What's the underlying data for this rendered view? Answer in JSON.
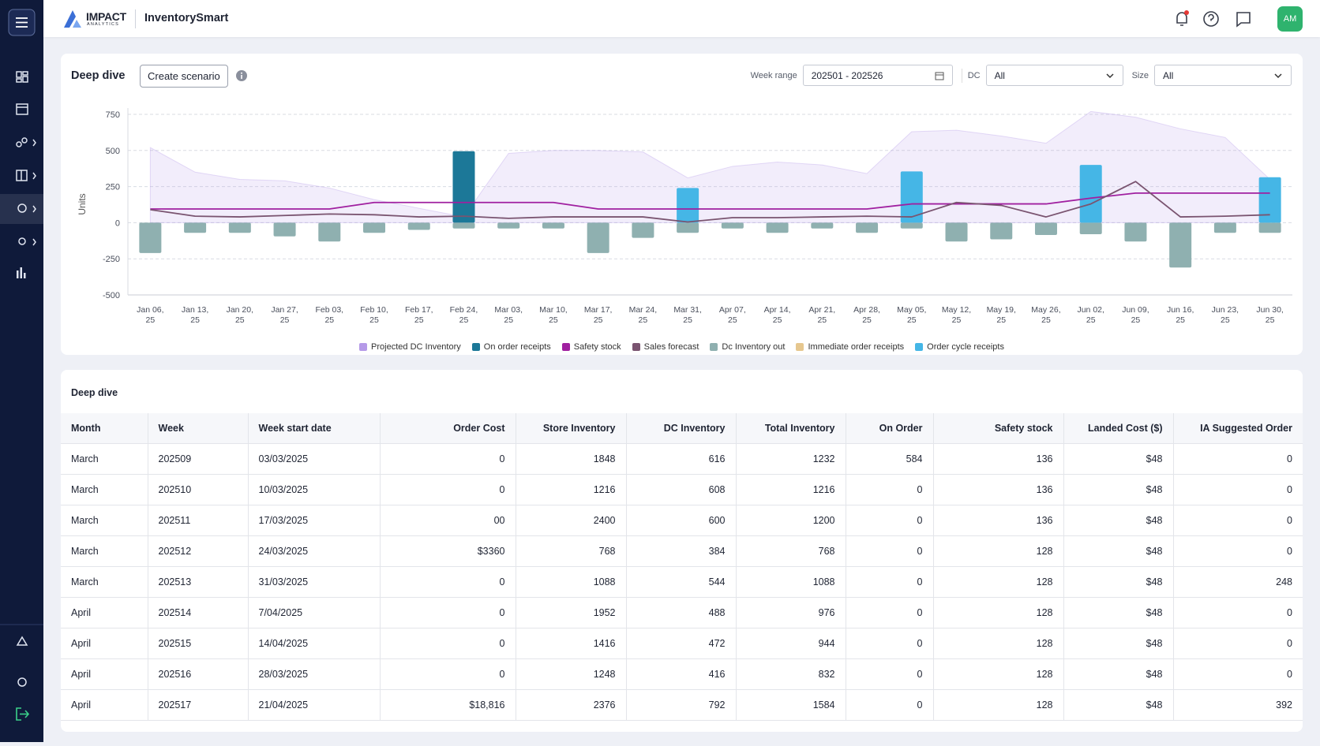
{
  "header": {
    "brand": "IMPACT",
    "brand_sub": "ANALYTICS",
    "app": "InventorySmart",
    "avatar": "AM"
  },
  "controls": {
    "title": "Deep dive",
    "create": "Create scenario",
    "week_range_label": "Week range",
    "week_range": "202501 - 202526",
    "dc_label": "DC",
    "dc": "All",
    "size_label": "Size",
    "size": "All"
  },
  "chart_data": {
    "type": "combo",
    "ylabel": "Units",
    "categories": [
      "Jan 06, 25",
      "Jan 13, 25",
      "Jan 20, 25",
      "Jan 27, 25",
      "Feb 03, 25",
      "Feb 10, 25",
      "Feb 17, 25",
      "Feb 24, 25",
      "Mar 03, 25",
      "Mar 10, 25",
      "Mar 17, 25",
      "Mar 24, 25",
      "Mar 31, 25",
      "Apr 07, 25",
      "Apr 14, 25",
      "Apr 21, 25",
      "Apr 28, 25",
      "May 05, 25",
      "May 12, 25",
      "May 19, 25",
      "May 26, 25",
      "Jun 02, 25",
      "Jun 09, 25",
      "Jun 16, 25",
      "Jun 23, 25",
      "Jun 30, 25"
    ],
    "ylim": [
      -500,
      750
    ],
    "yticks": [
      -500,
      -250,
      0,
      250,
      500,
      750
    ],
    "grid": true,
    "series": [
      {
        "name": "Projected DC Inventory",
        "kind": "area",
        "color": "#b59ae8",
        "values": [
          520,
          350,
          300,
          290,
          240,
          160,
          100,
          40,
          480,
          500,
          500,
          490,
          310,
          390,
          420,
          400,
          340,
          630,
          640,
          600,
          550,
          770,
          730,
          650,
          590,
          300
        ]
      },
      {
        "name": "On order receipts",
        "kind": "bar",
        "color": "#1c7898",
        "values": [
          0,
          0,
          0,
          0,
          0,
          0,
          0,
          495,
          0,
          0,
          0,
          0,
          0,
          0,
          0,
          0,
          0,
          0,
          0,
          0,
          0,
          0,
          0,
          0,
          0,
          0
        ]
      },
      {
        "name": "Safety stock",
        "kind": "line",
        "color": "#a020a0",
        "values": [
          95,
          95,
          95,
          95,
          95,
          140,
          140,
          140,
          140,
          140,
          95,
          95,
          95,
          95,
          95,
          95,
          95,
          130,
          130,
          130,
          130,
          170,
          205,
          205,
          205,
          205
        ]
      },
      {
        "name": "Sales forecast",
        "kind": "line",
        "color": "#7a5470",
        "values": [
          90,
          45,
          40,
          50,
          60,
          55,
          40,
          45,
          30,
          40,
          40,
          40,
          5,
          35,
          35,
          40,
          45,
          40,
          140,
          120,
          40,
          130,
          285,
          40,
          45,
          55
        ]
      },
      {
        "name": "Dc Inventory out",
        "kind": "bar",
        "color": "#8fb0b0",
        "values": [
          -210,
          -70,
          -70,
          -95,
          -130,
          -70,
          -50,
          -40,
          -40,
          -40,
          -210,
          -105,
          -70,
          -40,
          -70,
          -40,
          -70,
          -40,
          -130,
          -115,
          -85,
          -80,
          -130,
          -310,
          -70,
          -70
        ]
      },
      {
        "name": "Immediate order receipts",
        "kind": "bar",
        "color": "#e6c78f",
        "values": [
          0,
          0,
          0,
          0,
          0,
          0,
          0,
          0,
          0,
          0,
          0,
          0,
          0,
          0,
          0,
          0,
          0,
          0,
          0,
          0,
          0,
          0,
          0,
          0,
          0,
          0
        ]
      },
      {
        "name": "Order cycle receipts",
        "kind": "bar",
        "color": "#45b6e6",
        "values": [
          0,
          0,
          0,
          0,
          0,
          0,
          0,
          0,
          0,
          0,
          0,
          0,
          240,
          0,
          0,
          0,
          0,
          355,
          0,
          0,
          0,
          400,
          0,
          0,
          0,
          315
        ]
      }
    ]
  },
  "table": {
    "title": "Deep dive",
    "columns": [
      "Month",
      "Week",
      "Week start date",
      "Order Cost",
      "Store Inventory",
      "DC Inventory",
      "Total Inventory",
      "On  Order",
      "Safety stock",
      "Landed Cost ($)",
      "IA Suggested Order"
    ],
    "rows": [
      [
        "March",
        "202509",
        "03/03/2025",
        "0",
        "1848",
        "616",
        "1232",
        "584",
        "136",
        "$48",
        "0"
      ],
      [
        "March",
        "202510",
        "10/03/2025",
        "0",
        "1216",
        "608",
        "1216",
        "0",
        "136",
        "$48",
        "0"
      ],
      [
        "March",
        "202511",
        "17/03/2025",
        "00",
        "2400",
        "600",
        "1200",
        "0",
        "136",
        "$48",
        "0"
      ],
      [
        "March",
        "202512",
        "24/03/2025",
        "$3360",
        "768",
        "384",
        "768",
        "0",
        "128",
        "$48",
        "0"
      ],
      [
        "March",
        "202513",
        "31/03/2025",
        "0",
        "1088",
        "544",
        "1088",
        "0",
        "128",
        "$48",
        "248"
      ],
      [
        "April",
        "202514",
        "7/04/2025",
        "0",
        "1952",
        "488",
        "976",
        "0",
        "128",
        "$48",
        "0"
      ],
      [
        "April",
        "202515",
        "14/04/2025",
        "0",
        "1416",
        "472",
        "944",
        "0",
        "128",
        "$48",
        "0"
      ],
      [
        "April",
        "202516",
        "28/03/2025",
        "0",
        "1248",
        "416",
        "832",
        "0",
        "128",
        "$48",
        "0"
      ],
      [
        "April",
        "202517",
        "21/04/2025",
        "$18,816",
        "2376",
        "792",
        "1584",
        "0",
        "128",
        "$48",
        "392"
      ]
    ]
  }
}
